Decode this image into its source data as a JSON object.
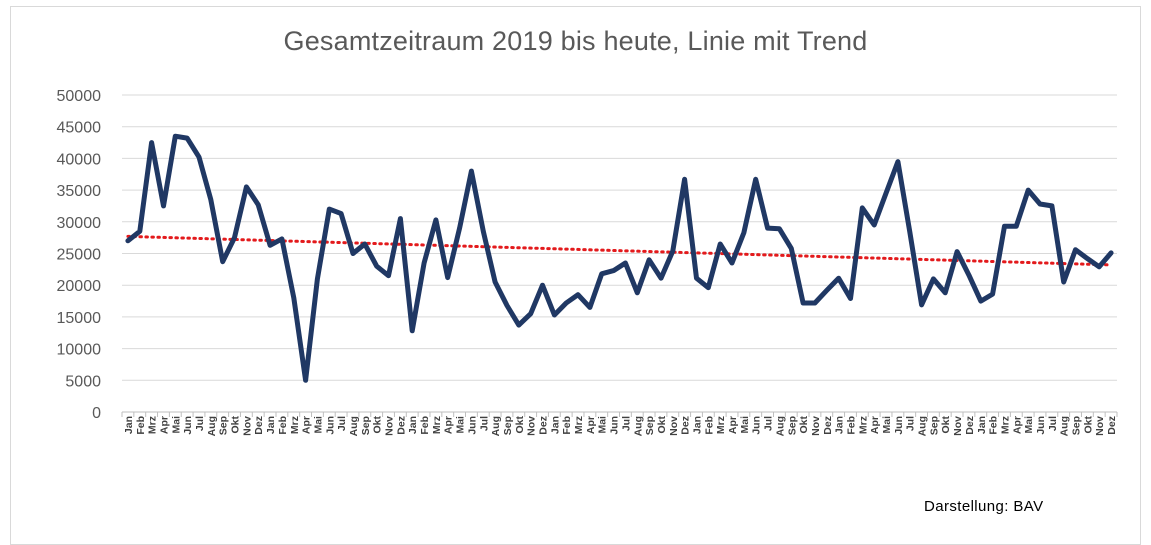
{
  "colors": {
    "line": "#203864",
    "trend": "#e31a1c",
    "grid": "#d9d9d9",
    "text": "#595959"
  },
  "credit": "Darstellung: BAV",
  "chart_data": {
    "type": "line",
    "title": "Gesamtzeitraum 2019 bis heute, Linie mit Trend",
    "xlabel": "",
    "ylabel": "",
    "ylim": [
      0,
      50000
    ],
    "yticks": [
      0,
      5000,
      10000,
      15000,
      20000,
      25000,
      30000,
      35000,
      40000,
      45000,
      50000
    ],
    "grid": true,
    "legend": "none",
    "categories": [
      "Jan",
      "Feb",
      "Mrz",
      "Apr",
      "Mai",
      "Jun",
      "Jul",
      "Aug",
      "Sep",
      "Okt",
      "Nov",
      "Dez",
      "Jan",
      "Feb",
      "Mrz",
      "Apr",
      "Mai",
      "Jun",
      "Jul",
      "Aug",
      "Sep",
      "Okt",
      "Nov",
      "Dez",
      "Jan",
      "Feb",
      "Mrz",
      "Apr",
      "Mai",
      "Jun",
      "Jul",
      "Aug",
      "Sep",
      "Okt",
      "Nov",
      "Dez",
      "Jan",
      "Feb",
      "Mrz",
      "Apr",
      "Mai",
      "Jun",
      "Jul",
      "Aug",
      "Sep",
      "Okt",
      "Nov",
      "Dez",
      "Jan",
      "Feb",
      "Mrz",
      "Apr",
      "Mai",
      "Jun",
      "Jul",
      "Aug",
      "Sep",
      "Okt",
      "Nov",
      "Dez",
      "Jan",
      "Feb",
      "Mrz",
      "Apr",
      "Mai",
      "Jun",
      "Jul",
      "Aug",
      "Sep",
      "Okt",
      "Nov",
      "Dez",
      "Jan",
      "Feb",
      "Mrz",
      "Apr",
      "Mai",
      "Jun",
      "Jul",
      "Aug",
      "Sep",
      "Okt",
      "Nov",
      "Dez"
    ],
    "series": [
      {
        "values": [
          27000,
          28500,
          42500,
          32500,
          43500,
          43200,
          40200,
          33500,
          23700,
          27500,
          35500,
          32700,
          26300,
          27300,
          18000,
          5000,
          21000,
          32000,
          31300,
          25000,
          26500,
          23000,
          21500,
          30500,
          12800,
          23500,
          30300,
          21200,
          29000,
          38000,
          28500,
          20500,
          16800,
          13700,
          15500,
          20000,
          15300,
          17200,
          18500,
          16500,
          21800,
          22300,
          23500,
          18800,
          24000,
          21100,
          25400,
          36700,
          21100,
          19600,
          26500,
          23500,
          28300,
          36700,
          29000,
          28900,
          25800,
          17200,
          17200,
          19200,
          21100,
          17900,
          32200,
          29500,
          34500,
          39500,
          28500,
          16900,
          21000,
          18800,
          25300,
          21600,
          17500,
          18600,
          29300,
          29300,
          35000,
          32800,
          32500,
          20500,
          25600,
          24200,
          22900,
          25100
        ]
      }
    ],
    "trend": {
      "type": "linear",
      "start": 27700,
      "end": 23200
    }
  }
}
